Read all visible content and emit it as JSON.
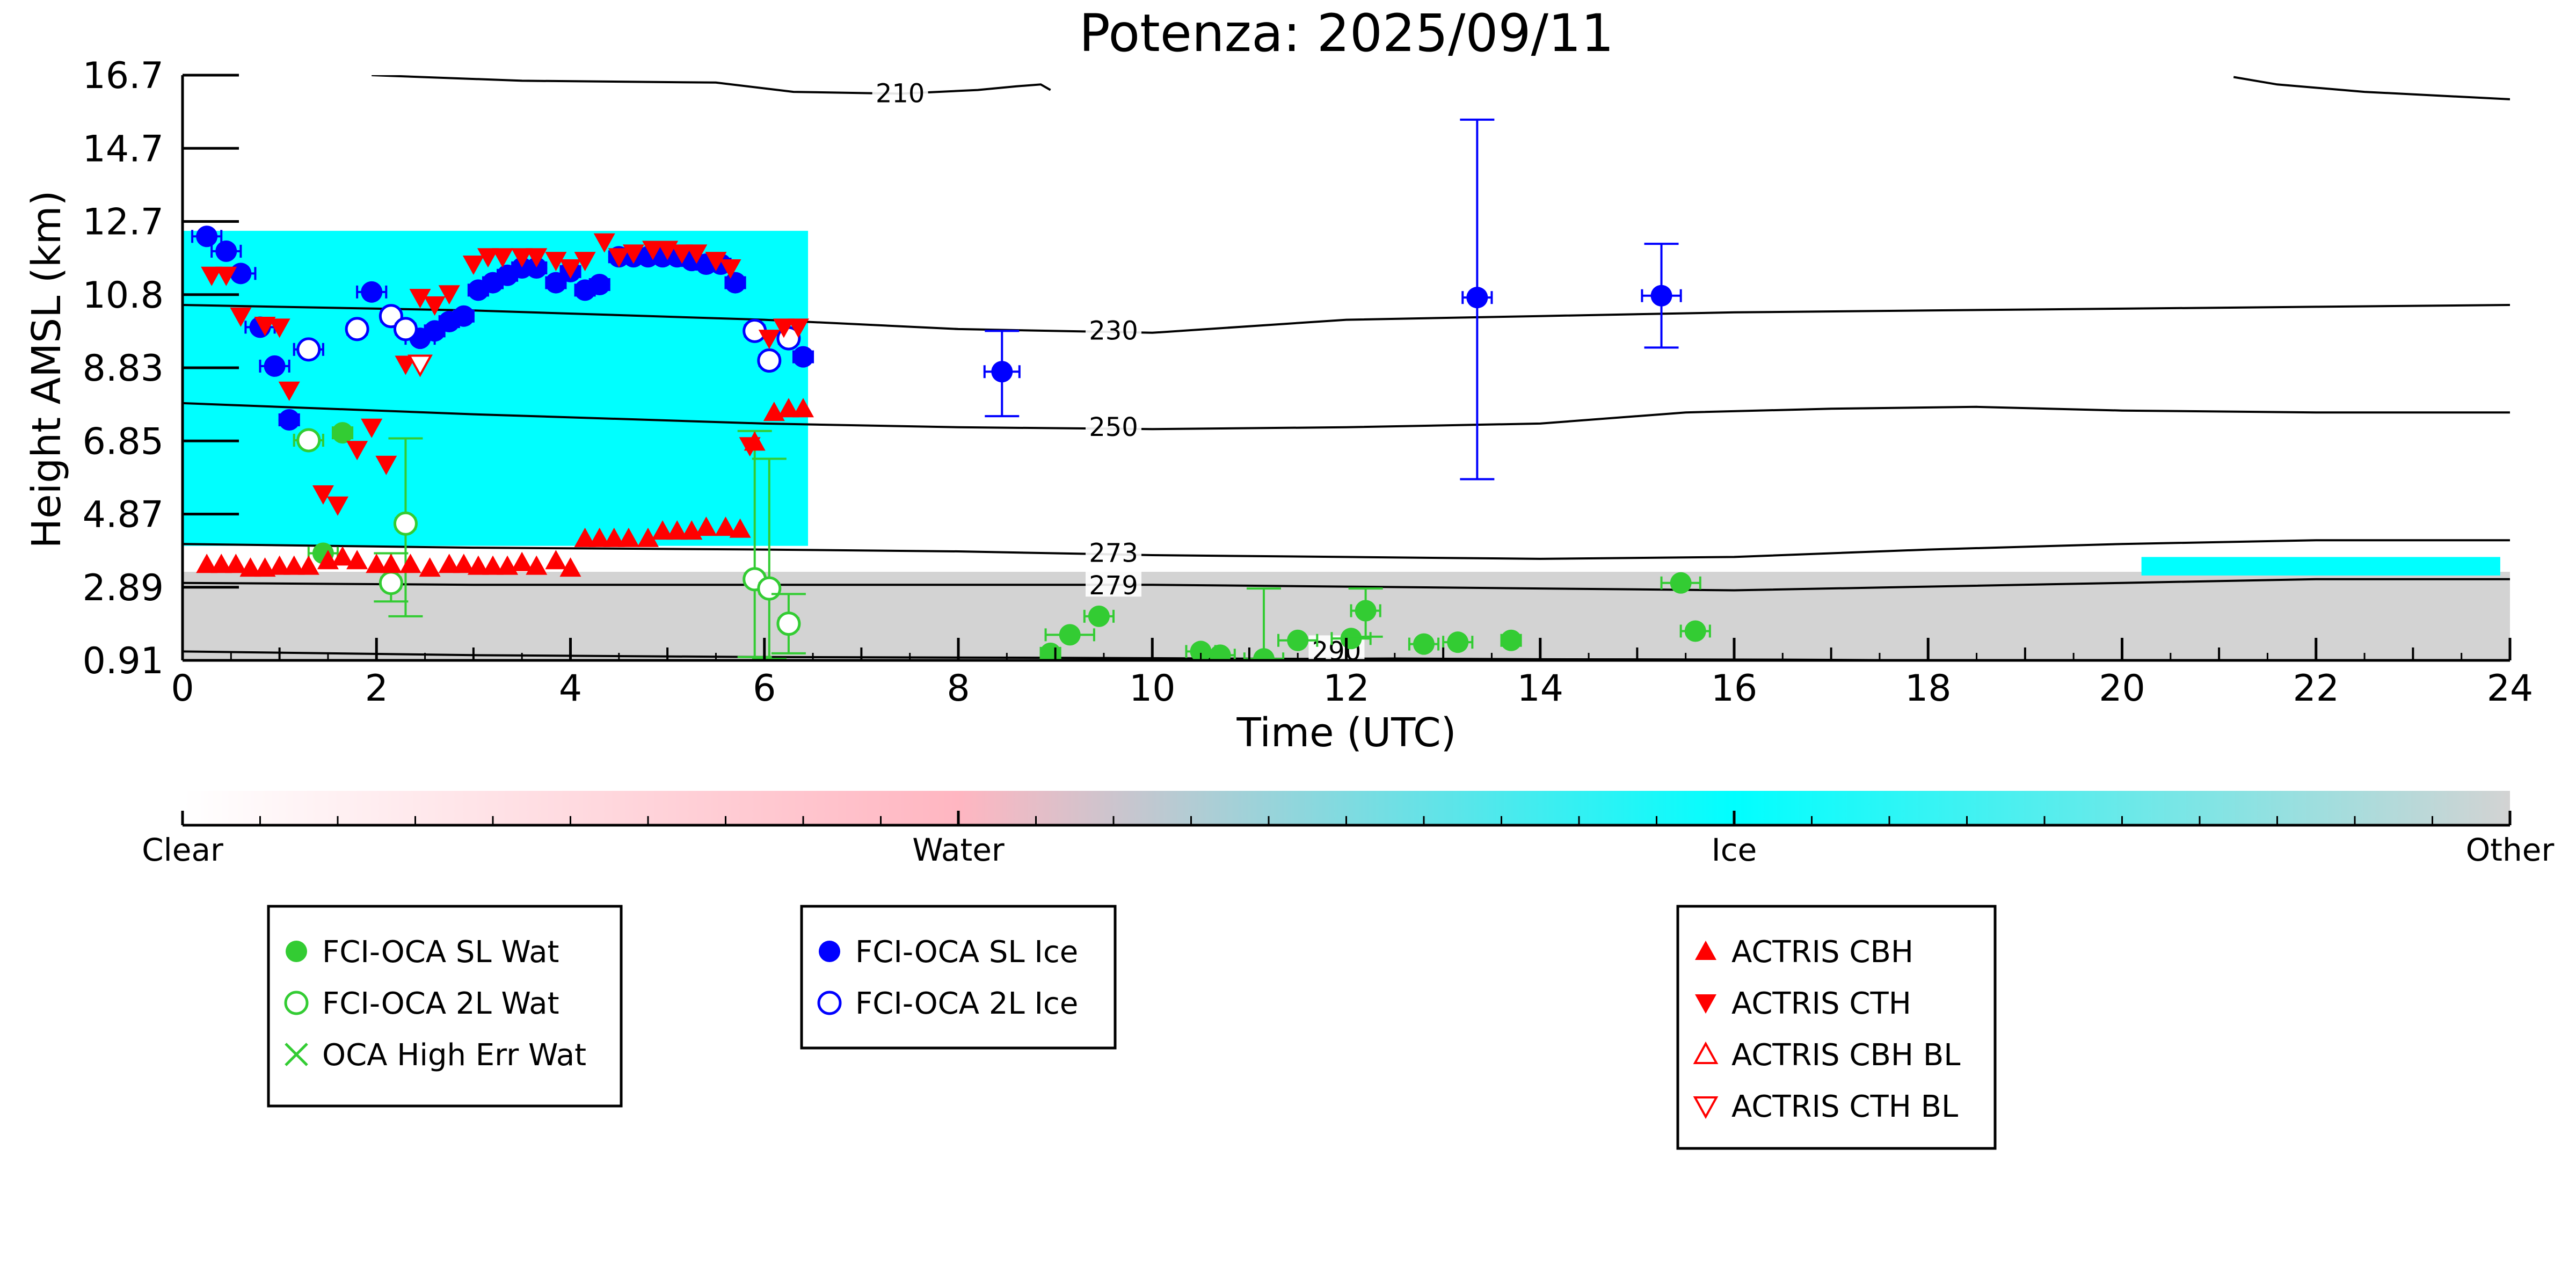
{
  "chart_data": {
    "type": "scatter",
    "title": "Potenza: 2025/09/11",
    "xlabel": "Time (UTC)",
    "ylabel": "Height AMSL (km)",
    "xlim": [
      0,
      24
    ],
    "ylim": [
      0.91,
      16.7
    ],
    "xticks": [
      "0",
      "2",
      "4",
      "6",
      "8",
      "10",
      "12",
      "14",
      "16",
      "18",
      "20",
      "22",
      "24"
    ],
    "yticks": [
      "0.91",
      "2.89",
      "4.87",
      "6.85",
      "8.83",
      "10.8",
      "12.7",
      "14.7",
      "16.7"
    ],
    "colorbar": {
      "labels": [
        "Clear",
        "Water",
        "Ice",
        "Other"
      ],
      "colors": [
        "#ffffff",
        "#ffb6c1",
        "#00ffff",
        "#d3d3d3"
      ]
    },
    "background_regions": [
      {
        "class": "Ice",
        "color": "#00ffff",
        "x": [
          0.0,
          6.45
        ],
        "y": [
          4.0,
          12.5
        ]
      },
      {
        "class": "Other",
        "color": "#d3d3d3",
        "x": [
          0.0,
          24.0
        ],
        "y": [
          0.91,
          3.3
        ]
      },
      {
        "class": "Ice",
        "color": "#00ffff",
        "x": [
          20.2,
          23.9
        ],
        "y": [
          3.2,
          3.7
        ]
      }
    ],
    "contours": [
      {
        "label": "210",
        "points": [
          [
            1.95,
            16.7
          ],
          [
            3.5,
            16.55
          ],
          [
            5.5,
            16.5
          ],
          [
            6.3,
            16.25
          ],
          [
            7.4,
            16.2
          ],
          [
            8.2,
            16.3
          ],
          [
            8.6,
            16.4
          ],
          [
            8.85,
            16.45
          ],
          [
            8.95,
            16.3
          ]
        ],
        "label_at": [
          7.4,
          16.2
        ]
      },
      {
        "label": "210b",
        "points": [
          [
            21.15,
            16.65
          ],
          [
            21.6,
            16.45
          ],
          [
            22.5,
            16.25
          ],
          [
            24.0,
            16.05
          ]
        ],
        "label_at": null
      },
      {
        "label": "230",
        "points": [
          [
            0,
            10.5
          ],
          [
            3.0,
            10.35
          ],
          [
            6.0,
            10.1
          ],
          [
            8.0,
            9.85
          ],
          [
            10.0,
            9.75
          ],
          [
            12.0,
            10.1
          ],
          [
            14.0,
            10.2
          ],
          [
            16.0,
            10.3
          ],
          [
            18.0,
            10.35
          ],
          [
            20.0,
            10.4
          ],
          [
            22.0,
            10.45
          ],
          [
            24.0,
            10.5
          ]
        ],
        "label_at": [
          9.6,
          9.8
        ]
      },
      {
        "label": "250",
        "points": [
          [
            0,
            7.85
          ],
          [
            3.0,
            7.55
          ],
          [
            6.0,
            7.3
          ],
          [
            8.0,
            7.2
          ],
          [
            10.0,
            7.15
          ],
          [
            12.0,
            7.2
          ],
          [
            14.0,
            7.3
          ],
          [
            15.5,
            7.6
          ],
          [
            17.0,
            7.7
          ],
          [
            18.5,
            7.75
          ],
          [
            20.0,
            7.65
          ],
          [
            22.0,
            7.6
          ],
          [
            24.0,
            7.6
          ]
        ],
        "label_at": [
          9.6,
          7.2
        ]
      },
      {
        "label": "273",
        "points": [
          [
            0,
            4.05
          ],
          [
            3.0,
            3.95
          ],
          [
            6.0,
            3.9
          ],
          [
            8.0,
            3.85
          ],
          [
            10.0,
            3.75
          ],
          [
            12.0,
            3.7
          ],
          [
            14.0,
            3.65
          ],
          [
            16.0,
            3.7
          ],
          [
            18.0,
            3.9
          ],
          [
            20.0,
            4.05
          ],
          [
            22.0,
            4.15
          ],
          [
            24.0,
            4.15
          ]
        ],
        "label_at": [
          9.6,
          3.8
        ]
      },
      {
        "label": "279",
        "points": [
          [
            0,
            3.0
          ],
          [
            3.0,
            2.95
          ],
          [
            6.0,
            2.95
          ],
          [
            8.0,
            2.95
          ],
          [
            10.0,
            2.95
          ],
          [
            12.0,
            2.9
          ],
          [
            14.0,
            2.85
          ],
          [
            16.0,
            2.8
          ],
          [
            18.0,
            2.9
          ],
          [
            20.0,
            3.0
          ],
          [
            22.0,
            3.1
          ],
          [
            24.0,
            3.1
          ]
        ],
        "label_at": [
          9.6,
          2.92
        ]
      },
      {
        "label": "290",
        "points": [
          [
            0,
            1.15
          ],
          [
            3.0,
            1.05
          ],
          [
            6.0,
            1.0
          ],
          [
            9.0,
            0.98
          ],
          [
            11.5,
            0.95
          ],
          [
            12.5,
            0.96
          ],
          [
            14.0,
            0.94
          ],
          [
            16.5,
            0.93
          ],
          [
            18.0,
            0.91
          ]
        ],
        "label_at": [
          11.9,
          1.15
        ]
      }
    ],
    "series": [
      {
        "name": "FCI-OCA SL Wat",
        "marker": "filled-circle",
        "color": "#33cc33",
        "points": [
          {
            "x": 1.45,
            "y": 3.8,
            "xerr": 0.15
          },
          {
            "x": 1.65,
            "y": 7.05,
            "xerr": 0.1
          },
          {
            "x": 8.95,
            "y": 1.1,
            "xerr": 0.1
          },
          {
            "x": 9.15,
            "y": 1.6,
            "xerr": 0.25
          },
          {
            "x": 9.45,
            "y": 2.1,
            "xerr": 0.15
          },
          {
            "x": 10.5,
            "y": 1.15,
            "xerr": 0.15
          },
          {
            "x": 10.7,
            "y": 1.05,
            "xerr": 0.15
          },
          {
            "x": 11.15,
            "y": 0.95,
            "xerr": 0.2,
            "yerr": [
              0.1,
              1.9
            ]
          },
          {
            "x": 11.5,
            "y": 1.45,
            "xerr": 0.2
          },
          {
            "x": 12.05,
            "y": 1.5,
            "xerr": 0.2
          },
          {
            "x": 12.2,
            "y": 2.25,
            "xerr": 0.15,
            "yerr": [
              0.7,
              0.6
            ]
          },
          {
            "x": 12.8,
            "y": 1.35,
            "xerr": 0.15
          },
          {
            "x": 13.15,
            "y": 1.4,
            "xerr": 0.15
          },
          {
            "x": 13.7,
            "y": 1.45,
            "xerr": 0.1
          },
          {
            "x": 15.45,
            "y": 3.0,
            "xerr": 0.2
          },
          {
            "x": 15.6,
            "y": 1.7,
            "xerr": 0.15
          }
        ]
      },
      {
        "name": "FCI-OCA 2L Wat",
        "marker": "open-circle",
        "color": "#33cc33",
        "points": [
          {
            "x": 1.3,
            "y": 6.85,
            "xerr": 0.15
          },
          {
            "x": 2.15,
            "y": 3.0,
            "xerr": 0.1,
            "yerr": [
              0.5,
              0.8
            ]
          },
          {
            "x": 2.3,
            "y": 4.6,
            "xerr": 0.1,
            "yerr": [
              2.5,
              2.3
            ]
          },
          {
            "x": 5.9,
            "y": 3.1,
            "xerr": 0.1,
            "yerr": [
              2.1,
              4.0
            ]
          },
          {
            "x": 6.05,
            "y": 2.85,
            "xerr": 0.1,
            "yerr": [
              1.9,
              3.5
            ]
          },
          {
            "x": 6.25,
            "y": 1.9,
            "xerr": 0.1,
            "yerr": [
              0.8,
              0.8
            ]
          }
        ]
      },
      {
        "name": "OCA High Err Wat",
        "marker": "x",
        "color": "#33cc33",
        "points": []
      },
      {
        "name": "FCI-OCA SL Ice",
        "marker": "filled-circle",
        "color": "#0000ff",
        "points": [
          {
            "x": 0.25,
            "y": 12.35,
            "xerr": 0.15
          },
          {
            "x": 0.45,
            "y": 11.95,
            "xerr": 0.15
          },
          {
            "x": 0.6,
            "y": 11.35,
            "xerr": 0.15
          },
          {
            "x": 0.8,
            "y": 9.9,
            "xerr": 0.15
          },
          {
            "x": 0.95,
            "y": 8.85,
            "xerr": 0.15
          },
          {
            "x": 1.1,
            "y": 7.4,
            "xerr": 0.1
          },
          {
            "x": 1.95,
            "y": 10.85,
            "xerr": 0.15
          },
          {
            "x": 2.45,
            "y": 9.6,
            "xerr": 0.15
          },
          {
            "x": 2.6,
            "y": 9.8,
            "xerr": 0.1
          },
          {
            "x": 2.75,
            "y": 10.05,
            "xerr": 0.1
          },
          {
            "x": 2.9,
            "y": 10.2,
            "xerr": 0.1
          },
          {
            "x": 3.05,
            "y": 10.9,
            "xerr": 0.1
          },
          {
            "x": 3.2,
            "y": 11.1,
            "xerr": 0.1
          },
          {
            "x": 3.35,
            "y": 11.3,
            "xerr": 0.1
          },
          {
            "x": 3.5,
            "y": 11.5,
            "xerr": 0.1
          },
          {
            "x": 3.65,
            "y": 11.5,
            "xerr": 0.1
          },
          {
            "x": 3.85,
            "y": 11.1,
            "xerr": 0.1
          },
          {
            "x": 4.0,
            "y": 11.4,
            "xerr": 0.1
          },
          {
            "x": 4.15,
            "y": 10.9,
            "xerr": 0.1
          },
          {
            "x": 4.3,
            "y": 11.05,
            "xerr": 0.1
          },
          {
            "x": 4.5,
            "y": 11.8,
            "xerr": 0.1
          },
          {
            "x": 4.65,
            "y": 11.8,
            "xerr": 0.1
          },
          {
            "x": 4.8,
            "y": 11.8,
            "xerr": 0.1
          },
          {
            "x": 4.95,
            "y": 11.8,
            "xerr": 0.1
          },
          {
            "x": 5.1,
            "y": 11.8,
            "xerr": 0.1
          },
          {
            "x": 5.25,
            "y": 11.7,
            "xerr": 0.1
          },
          {
            "x": 5.4,
            "y": 11.6,
            "xerr": 0.1
          },
          {
            "x": 5.55,
            "y": 11.6,
            "xerr": 0.1
          },
          {
            "x": 5.7,
            "y": 11.1,
            "xerr": 0.1
          },
          {
            "x": 6.4,
            "y": 9.1,
            "xerr": 0.1
          },
          {
            "x": 8.45,
            "y": 8.7,
            "xerr": 0.18,
            "yerr": [
              1.2,
              1.1
            ]
          },
          {
            "x": 13.35,
            "y": 10.7,
            "xerr": 0.15,
            "yerr": [
              4.9,
              4.8
            ]
          },
          {
            "x": 15.25,
            "y": 10.75,
            "xerr": 0.2,
            "yerr": [
              1.4,
              1.4
            ]
          }
        ]
      },
      {
        "name": "FCI-OCA 2L Ice",
        "marker": "open-circle",
        "color": "#0000ff",
        "points": [
          {
            "x": 1.3,
            "y": 9.3,
            "xerr": 0.15
          },
          {
            "x": 1.8,
            "y": 9.85,
            "xerr": 0.1
          },
          {
            "x": 2.15,
            "y": 10.2,
            "xerr": 0.1
          },
          {
            "x": 2.3,
            "y": 9.85,
            "xerr": 0.1
          },
          {
            "x": 5.9,
            "y": 9.8,
            "xerr": 0.1
          },
          {
            "x": 6.05,
            "y": 9.0,
            "xerr": 0.1
          },
          {
            "x": 6.25,
            "y": 9.6,
            "xerr": 0.1
          }
        ]
      },
      {
        "name": "ACTRIS CBH",
        "marker": "triangle-up",
        "color": "#ff0000",
        "points": [
          {
            "x": 0.25,
            "y": 3.5
          },
          {
            "x": 0.4,
            "y": 3.5
          },
          {
            "x": 0.55,
            "y": 3.5
          },
          {
            "x": 0.7,
            "y": 3.4
          },
          {
            "x": 0.85,
            "y": 3.4
          },
          {
            "x": 1.0,
            "y": 3.45
          },
          {
            "x": 1.15,
            "y": 3.45
          },
          {
            "x": 1.3,
            "y": 3.45
          },
          {
            "x": 1.5,
            "y": 3.6
          },
          {
            "x": 1.65,
            "y": 3.7
          },
          {
            "x": 1.8,
            "y": 3.6
          },
          {
            "x": 2.0,
            "y": 3.5
          },
          {
            "x": 2.15,
            "y": 3.5
          },
          {
            "x": 2.35,
            "y": 3.5
          },
          {
            "x": 2.55,
            "y": 3.4
          },
          {
            "x": 2.75,
            "y": 3.5
          },
          {
            "x": 2.9,
            "y": 3.5
          },
          {
            "x": 3.05,
            "y": 3.45
          },
          {
            "x": 3.2,
            "y": 3.45
          },
          {
            "x": 3.35,
            "y": 3.45
          },
          {
            "x": 3.5,
            "y": 3.55
          },
          {
            "x": 3.65,
            "y": 3.45
          },
          {
            "x": 3.85,
            "y": 3.6
          },
          {
            "x": 4.0,
            "y": 3.4
          },
          {
            "x": 4.15,
            "y": 4.2
          },
          {
            "x": 4.3,
            "y": 4.2
          },
          {
            "x": 4.45,
            "y": 4.2
          },
          {
            "x": 4.6,
            "y": 4.2
          },
          {
            "x": 4.8,
            "y": 4.2
          },
          {
            "x": 4.95,
            "y": 4.4
          },
          {
            "x": 5.1,
            "y": 4.4
          },
          {
            "x": 5.25,
            "y": 4.4
          },
          {
            "x": 5.4,
            "y": 4.5
          },
          {
            "x": 5.6,
            "y": 4.5
          },
          {
            "x": 5.75,
            "y": 4.45
          },
          {
            "x": 5.9,
            "y": 6.8
          },
          {
            "x": 6.1,
            "y": 7.6
          },
          {
            "x": 6.25,
            "y": 7.7
          },
          {
            "x": 6.4,
            "y": 7.7
          }
        ]
      },
      {
        "name": "ACTRIS CTH",
        "marker": "triangle-down",
        "color": "#ff0000",
        "points": [
          {
            "x": 0.3,
            "y": 11.3
          },
          {
            "x": 0.45,
            "y": 11.3
          },
          {
            "x": 0.6,
            "y": 10.2
          },
          {
            "x": 0.85,
            "y": 9.95
          },
          {
            "x": 1.0,
            "y": 9.9
          },
          {
            "x": 1.1,
            "y": 8.2
          },
          {
            "x": 1.45,
            "y": 5.4
          },
          {
            "x": 1.6,
            "y": 5.1
          },
          {
            "x": 1.8,
            "y": 6.6
          },
          {
            "x": 1.95,
            "y": 7.2
          },
          {
            "x": 2.1,
            "y": 6.2
          },
          {
            "x": 2.3,
            "y": 8.9
          },
          {
            "x": 2.45,
            "y": 10.7
          },
          {
            "x": 2.6,
            "y": 10.5
          },
          {
            "x": 2.75,
            "y": 10.8
          },
          {
            "x": 3.0,
            "y": 11.6
          },
          {
            "x": 3.15,
            "y": 11.8
          },
          {
            "x": 3.3,
            "y": 11.8
          },
          {
            "x": 3.5,
            "y": 11.8
          },
          {
            "x": 3.65,
            "y": 11.8
          },
          {
            "x": 3.85,
            "y": 11.7
          },
          {
            "x": 4.0,
            "y": 11.5
          },
          {
            "x": 4.15,
            "y": 11.7
          },
          {
            "x": 4.35,
            "y": 12.2
          },
          {
            "x": 4.5,
            "y": 11.8
          },
          {
            "x": 4.65,
            "y": 11.9
          },
          {
            "x": 4.85,
            "y": 12.0
          },
          {
            "x": 5.0,
            "y": 12.0
          },
          {
            "x": 5.15,
            "y": 11.9
          },
          {
            "x": 5.3,
            "y": 11.9
          },
          {
            "x": 5.5,
            "y": 11.7
          },
          {
            "x": 5.65,
            "y": 11.5
          },
          {
            "x": 5.85,
            "y": 6.7
          },
          {
            "x": 6.05,
            "y": 9.6
          },
          {
            "x": 6.2,
            "y": 9.9
          },
          {
            "x": 6.35,
            "y": 9.9
          }
        ]
      },
      {
        "name": "ACTRIS CBH BL",
        "marker": "open-triangle-up",
        "color": "#ff0000",
        "points": []
      },
      {
        "name": "ACTRIS CTH BL",
        "marker": "open-triangle-down",
        "color": "#ff0000",
        "points": [
          {
            "x": 2.45,
            "y": 8.9
          }
        ]
      }
    ],
    "legend_groups": [
      [
        "FCI-OCA SL Wat",
        "FCI-OCA 2L Wat",
        "OCA High Err Wat"
      ],
      [
        "FCI-OCA SL Ice",
        "FCI-OCA 2L Ice"
      ],
      [
        "ACTRIS CBH",
        "ACTRIS CTH",
        "ACTRIS CBH BL",
        "ACTRIS CTH BL"
      ]
    ]
  }
}
